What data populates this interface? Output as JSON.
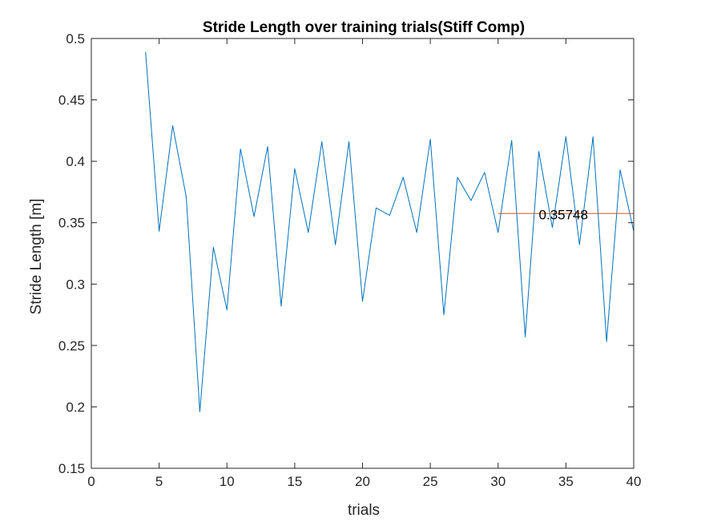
{
  "chart_data": {
    "type": "line",
    "title": "Stride Length over training trials(Stiff Comp)",
    "xlabel": "trials",
    "ylabel": "Stride Length [m]",
    "xlim": [
      0,
      40
    ],
    "ylim": [
      0.15,
      0.5
    ],
    "xticks": [
      0,
      5,
      10,
      15,
      20,
      25,
      30,
      35,
      40
    ],
    "yticks": [
      0.15,
      0.2,
      0.25,
      0.3,
      0.35,
      0.4,
      0.45,
      0.5
    ],
    "xtick_labels": [
      "0",
      "5",
      "10",
      "15",
      "20",
      "25",
      "30",
      "35",
      "40"
    ],
    "ytick_labels": [
      "0.15",
      "0.2",
      "0.25",
      "0.3",
      "0.35",
      "0.4",
      "0.45",
      "0.5"
    ],
    "grid": false,
    "series": [
      {
        "color": "#0072BD",
        "x": [
          4,
          5,
          6,
          7,
          8,
          9,
          10,
          11,
          12,
          13,
          14,
          15,
          16,
          17,
          18,
          19,
          20,
          21,
          22,
          23,
          24,
          25,
          26,
          27,
          28,
          29,
          30,
          31,
          32,
          33,
          34,
          35,
          36,
          37,
          38,
          39,
          40
        ],
        "y": [
          0.489,
          0.343,
          0.429,
          0.371,
          0.196,
          0.33,
          0.279,
          0.41,
          0.355,
          0.412,
          0.282,
          0.394,
          0.342,
          0.416,
          0.332,
          0.416,
          0.286,
          0.362,
          0.356,
          0.387,
          0.342,
          0.418,
          0.275,
          0.387,
          0.368,
          0.391,
          0.342,
          0.417,
          0.257,
          0.408,
          0.346,
          0.42,
          0.332,
          0.42,
          0.253,
          0.393,
          0.343
        ]
      },
      {
        "color": "#D95319",
        "x": [
          30,
          40
        ],
        "y": [
          0.35748,
          0.35748
        ]
      }
    ],
    "annotations": [
      {
        "text": "0.35748",
        "x": 33.0,
        "y": 0.35748
      }
    ]
  }
}
